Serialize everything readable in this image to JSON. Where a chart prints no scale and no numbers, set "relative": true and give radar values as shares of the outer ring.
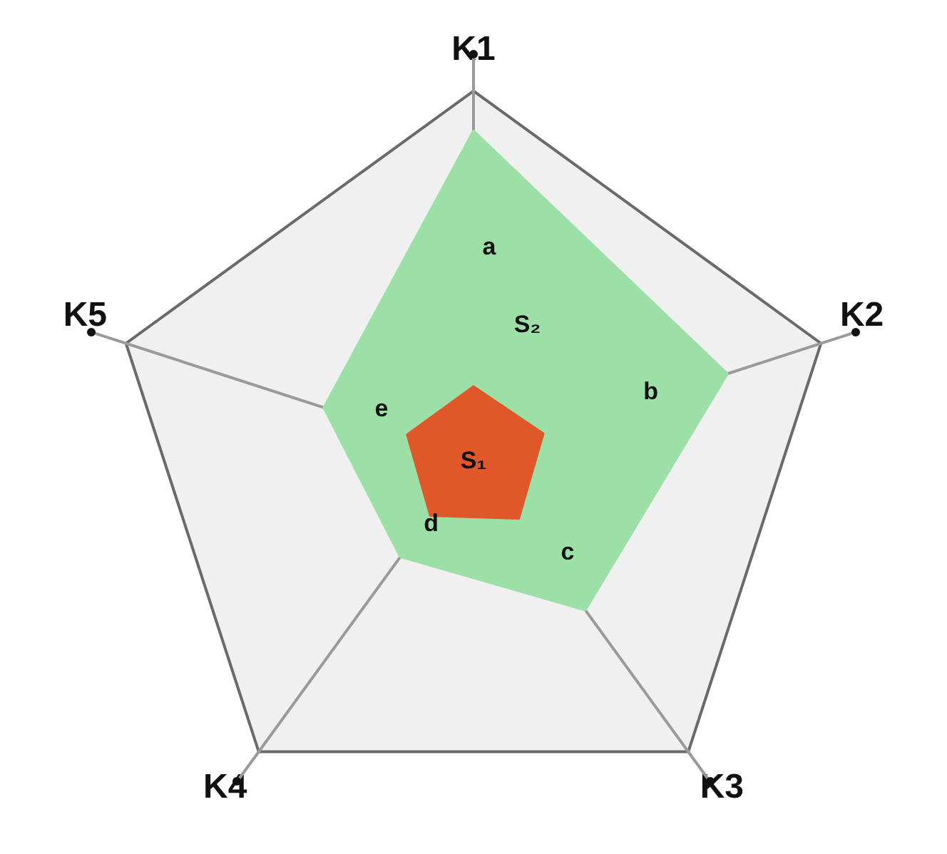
{
  "chart_data": {
    "type": "radar",
    "relative": true,
    "categories": [
      "K1",
      "K2",
      "K3",
      "K4",
      "K5"
    ],
    "legend": false,
    "series": [
      {
        "name": "S₂",
        "color": "#9ce0a8",
        "values": [
          0.89,
          0.73,
          0.52,
          0.34,
          0.43
        ]
      },
      {
        "name": "S₁",
        "color": "#e0582a",
        "values": [
          0.19,
          0.2,
          0.21,
          0.2,
          0.19
        ]
      }
    ],
    "annotations": [
      {
        "text": "a",
        "x": "K1"
      },
      {
        "text": "b",
        "x": "K2"
      },
      {
        "text": "c",
        "x": "K3"
      },
      {
        "text": "d",
        "x": "K4"
      },
      {
        "text": "e",
        "x": "K5"
      }
    ]
  }
}
